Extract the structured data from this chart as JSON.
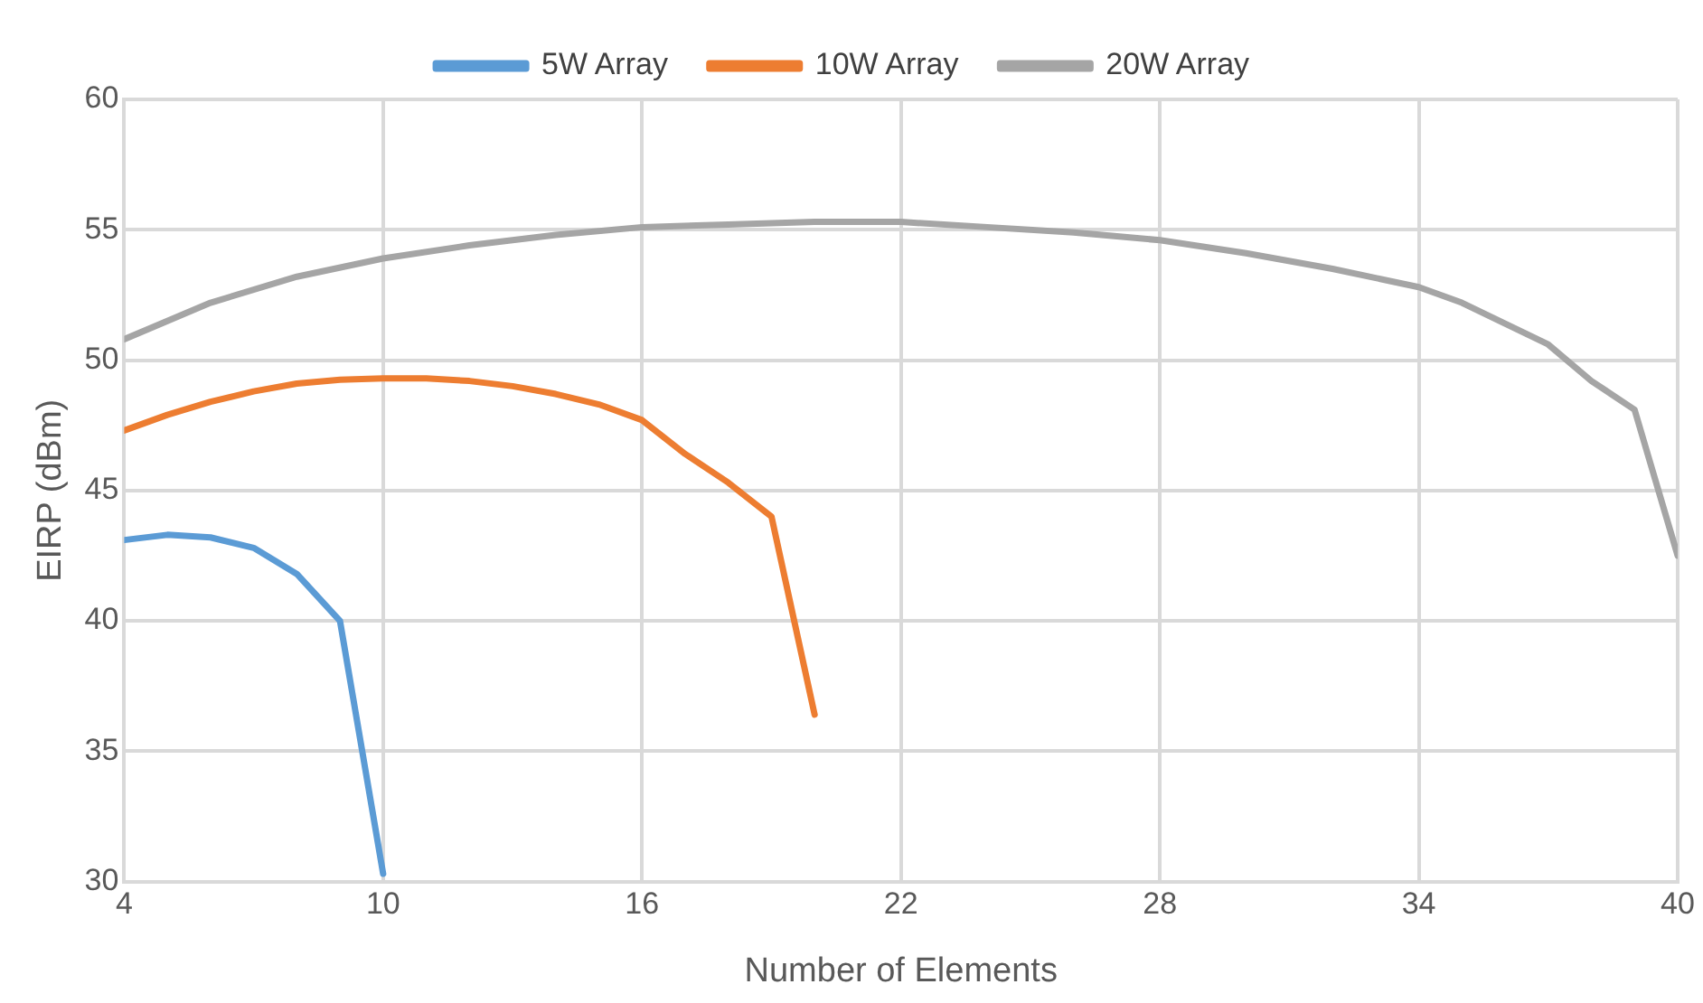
{
  "chart_data": {
    "type": "line",
    "xlabel": "Number of Elements",
    "ylabel": "EIRP (dBm)",
    "xlim": [
      4,
      40
    ],
    "xticks": [
      4,
      10,
      16,
      22,
      28,
      34,
      40
    ],
    "ylim": [
      30,
      60
    ],
    "yticks": [
      30,
      35,
      40,
      45,
      50,
      55,
      60
    ],
    "grid": true,
    "legend": "top",
    "marker": "none",
    "line_style": "solid",
    "series": [
      {
        "name": "5W Array",
        "color": "#5b9bd5",
        "x": [
          4,
          5,
          6,
          7,
          8,
          9,
          10
        ],
        "values": [
          43.1,
          43.3,
          43.2,
          42.8,
          41.8,
          40.0,
          30.3
        ]
      },
      {
        "name": "10W Array",
        "color": "#ed7d31",
        "x": [
          4,
          5,
          6,
          7,
          8,
          9,
          10,
          11,
          12,
          13,
          14,
          15,
          16,
          17,
          18,
          19,
          20
        ],
        "values": [
          47.3,
          47.9,
          48.4,
          48.8,
          49.1,
          49.25,
          49.3,
          49.3,
          49.2,
          49.0,
          48.7,
          48.3,
          47.7,
          46.4,
          45.3,
          44.0,
          36.4
        ]
      },
      {
        "name": "20W Array",
        "color": "#a5a5a5",
        "x": [
          4,
          6,
          8,
          10,
          12,
          14,
          16,
          18,
          20,
          22,
          24,
          26,
          28,
          30,
          32,
          34,
          35,
          36,
          37,
          38,
          39,
          40
        ],
        "values": [
          50.8,
          52.2,
          53.2,
          53.9,
          54.4,
          54.8,
          55.1,
          55.2,
          55.3,
          55.3,
          55.1,
          54.9,
          54.6,
          54.1,
          53.5,
          52.8,
          52.2,
          51.4,
          50.6,
          49.2,
          48.1,
          42.5
        ]
      }
    ]
  }
}
